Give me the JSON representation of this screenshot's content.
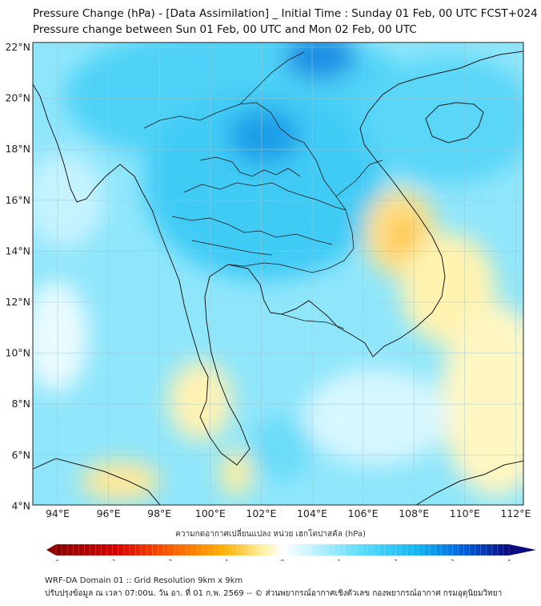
{
  "title_line1": "Pressure Change (hPa) - [Data Assimilation] _ Initial Time : Sunday 01 Feb, 00 UTC FCST+024",
  "title_line2": "Pressure change between Sun 01 Feb, 00 UTC and Mon 02 Feb, 00 UTC",
  "map": {
    "latitudes": [
      "22°N",
      "20°N",
      "18°N",
      "16°N",
      "14°N",
      "12°N",
      "10°N",
      "8°N",
      "6°N",
      "4°N"
    ],
    "longitudes": [
      "94°E",
      "96°E",
      "98°E",
      "100°E",
      "102°E",
      "104°E",
      "106°E",
      "108°E",
      "110°E",
      "112°E"
    ],
    "grid": true,
    "field": "pressure change",
    "units": "hPa"
  },
  "colorbar": {
    "title": "ความกดอากาศเปลี่ยนแปลง หน่วย เฮกโตปาสคัล (hPa)",
    "ticks": [
      "-4",
      "-3",
      "-2",
      "-1",
      "0",
      "1",
      "2",
      "3",
      "4"
    ],
    "min": -4,
    "max": 4,
    "colors": {
      "neg_dark": "#8b0000",
      "neg_mid": "#ff3300",
      "neg_orange": "#ffaa00",
      "neg_light": "#fff2a8",
      "zero": "#ffffff",
      "pos_light": "#bff2ff",
      "pos_mid": "#33ccff",
      "pos_dark": "#0044cc",
      "pos_max": "#0a0a80"
    }
  },
  "footer_line1": "WRF-DA Domain 01 :: Grid Resolution 9km x 9km",
  "footer_line2": "ปรับปรุงข้อมูล ณ เวลา 07:00น. วัน อา. ที่ 01 ก.พ. 2569 -- © ส่วนพยากรณ์อากาศเชิงตัวเลข กองพยากรณ์อากาศ กรมอุตุนิยมวิทยา"
}
